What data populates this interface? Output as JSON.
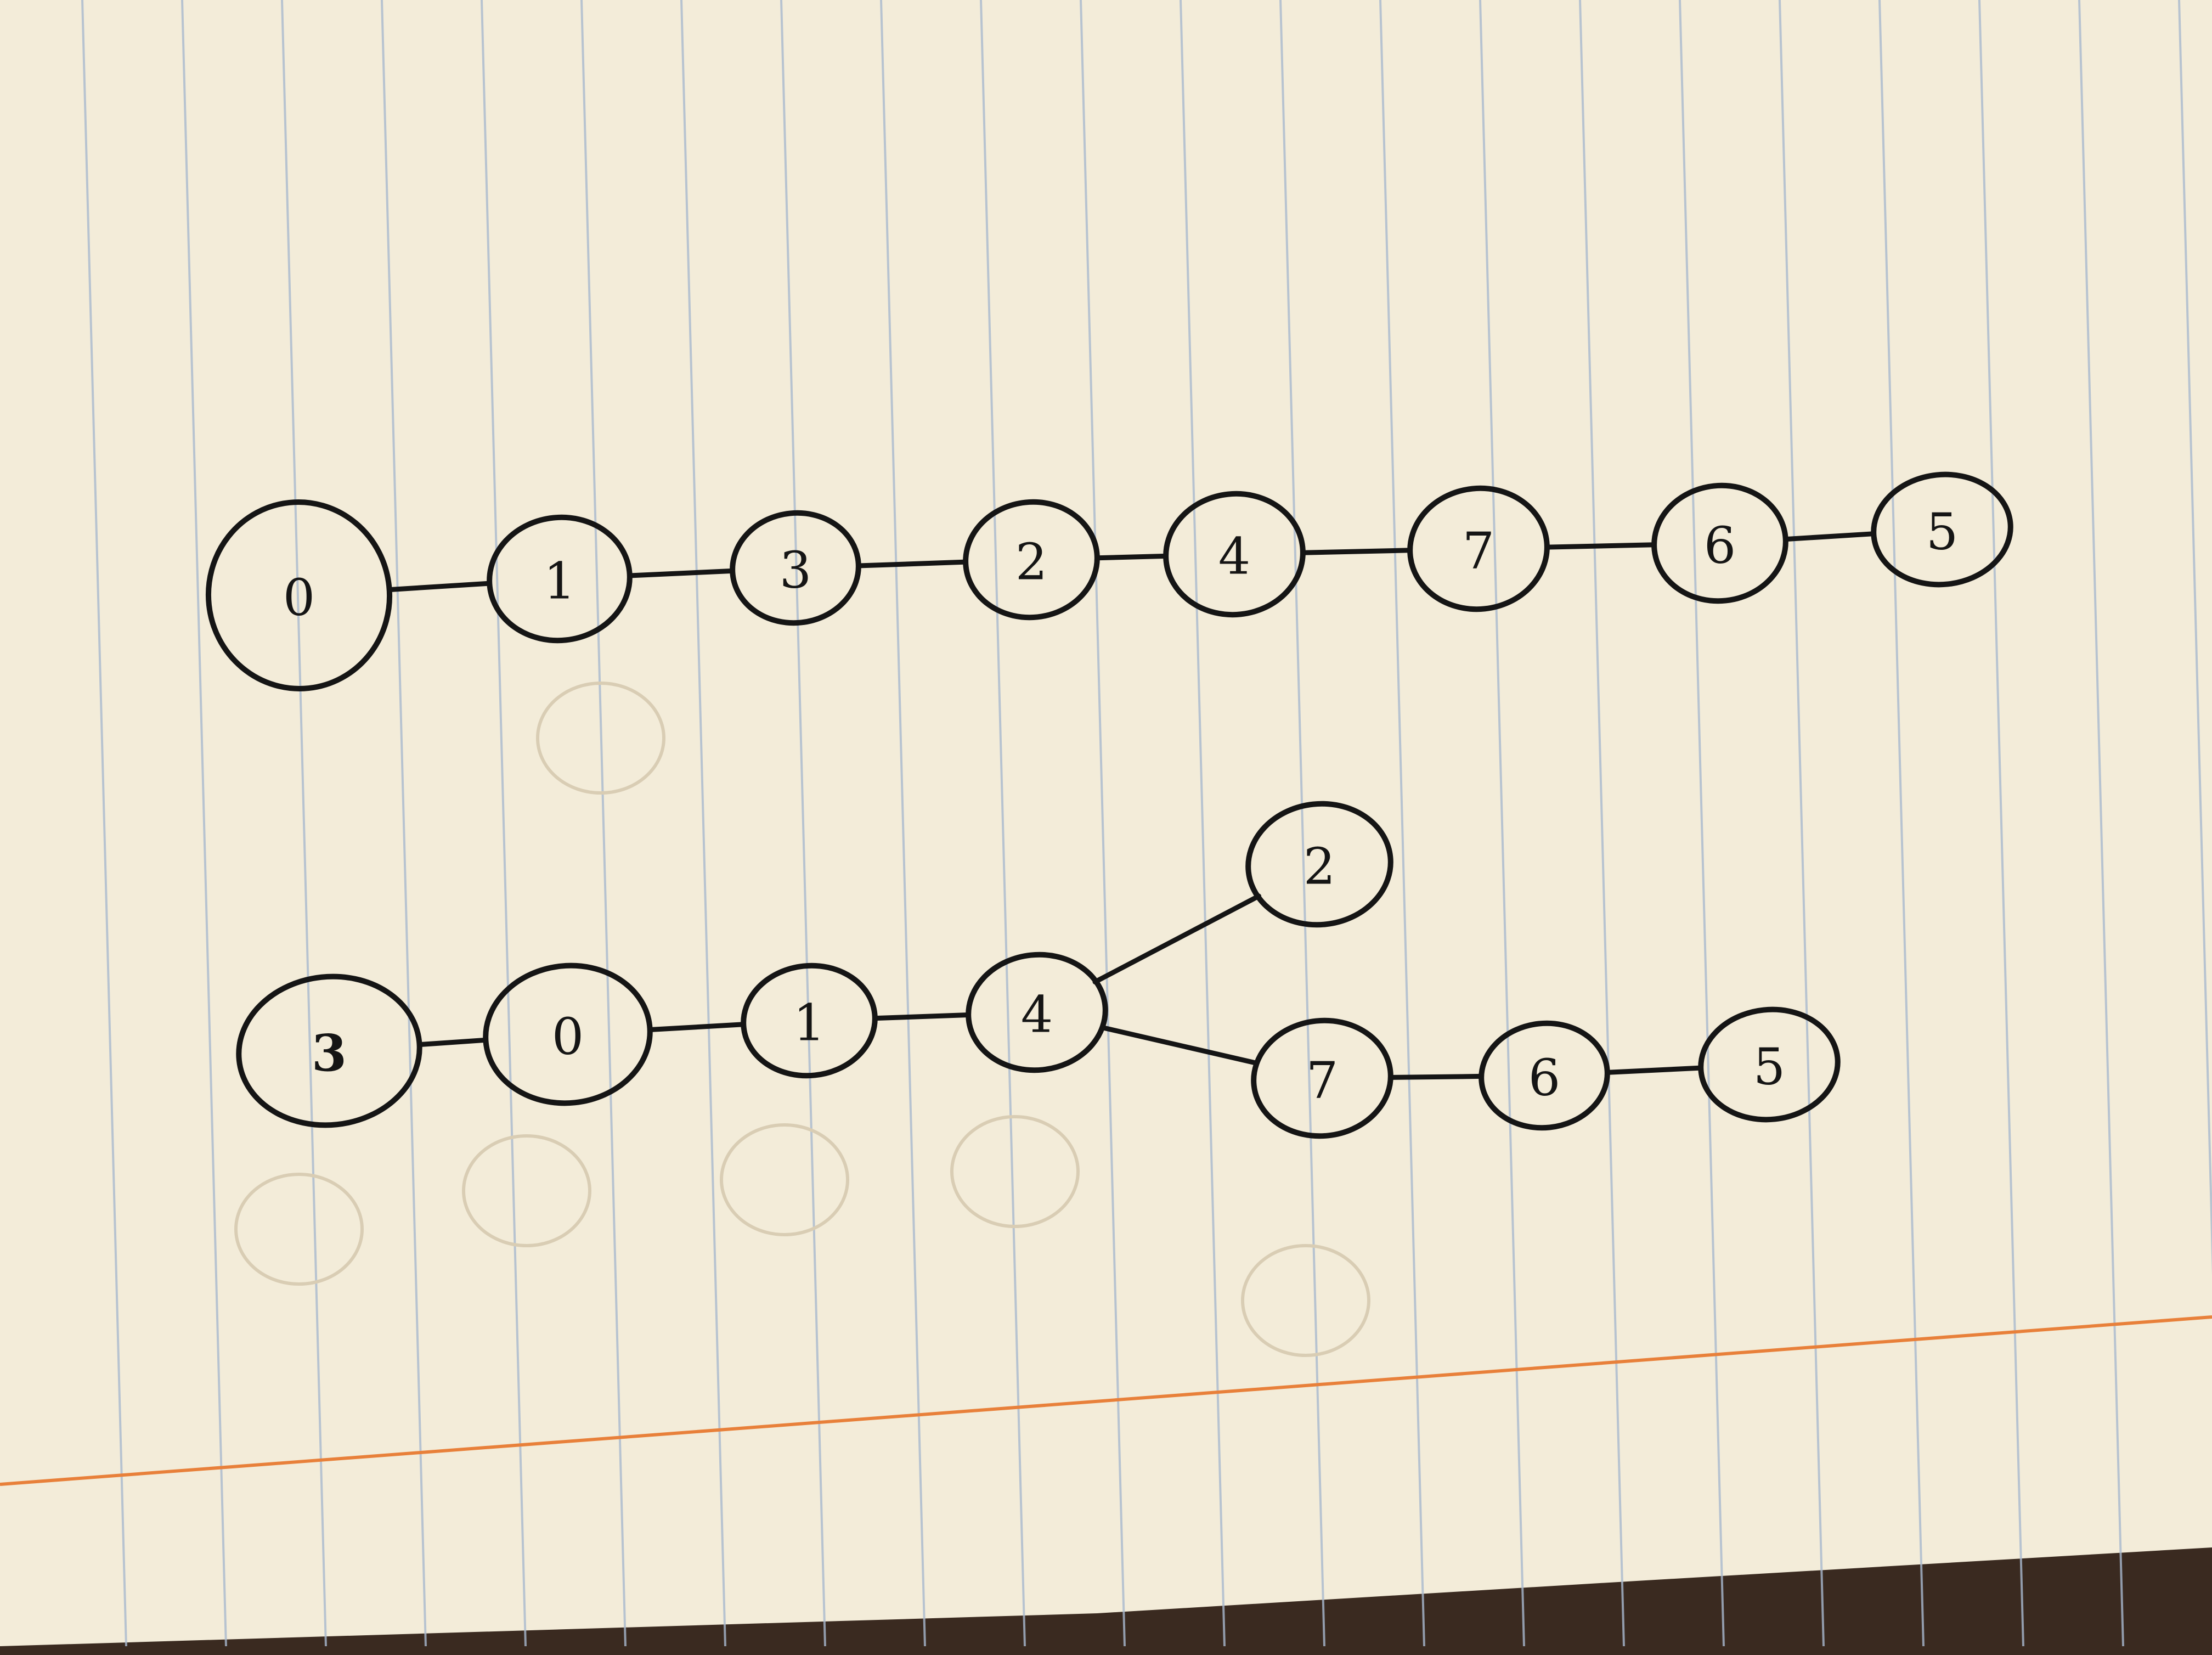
{
  "colors": {
    "paper": "#f3ecd9",
    "ruling": "#a9b9cf",
    "margin": "#e8803a",
    "ink": "#151515",
    "table": "#3a2a20"
  },
  "diagrams": [
    {
      "nodes": [
        {
          "id": "a0",
          "label": "0"
        },
        {
          "id": "a1",
          "label": "1"
        },
        {
          "id": "a3",
          "label": "3"
        },
        {
          "id": "a2",
          "label": "2"
        },
        {
          "id": "a4",
          "label": "4"
        },
        {
          "id": "a7",
          "label": "7"
        },
        {
          "id": "a6",
          "label": "6"
        },
        {
          "id": "a5",
          "label": "5"
        }
      ],
      "edges": [
        [
          "a0",
          "a1"
        ],
        [
          "a1",
          "a3"
        ],
        [
          "a3",
          "a2"
        ],
        [
          "a2",
          "a4"
        ],
        [
          "a4",
          "a7"
        ],
        [
          "a7",
          "a6"
        ],
        [
          "a6",
          "a5"
        ]
      ]
    },
    {
      "nodes": [
        {
          "id": "b3",
          "label": "3"
        },
        {
          "id": "b0",
          "label": "0"
        },
        {
          "id": "b1",
          "label": "1"
        },
        {
          "id": "b4",
          "label": "4"
        },
        {
          "id": "b2",
          "label": "2"
        },
        {
          "id": "b7",
          "label": "7"
        },
        {
          "id": "b6",
          "label": "6"
        },
        {
          "id": "b5",
          "label": "5"
        }
      ],
      "edges": [
        [
          "b3",
          "b0"
        ],
        [
          "b0",
          "b1"
        ],
        [
          "b1",
          "b4"
        ],
        [
          "b4",
          "b2"
        ],
        [
          "b4",
          "b7"
        ],
        [
          "b7",
          "b6"
        ],
        [
          "b6",
          "b5"
        ]
      ]
    }
  ]
}
